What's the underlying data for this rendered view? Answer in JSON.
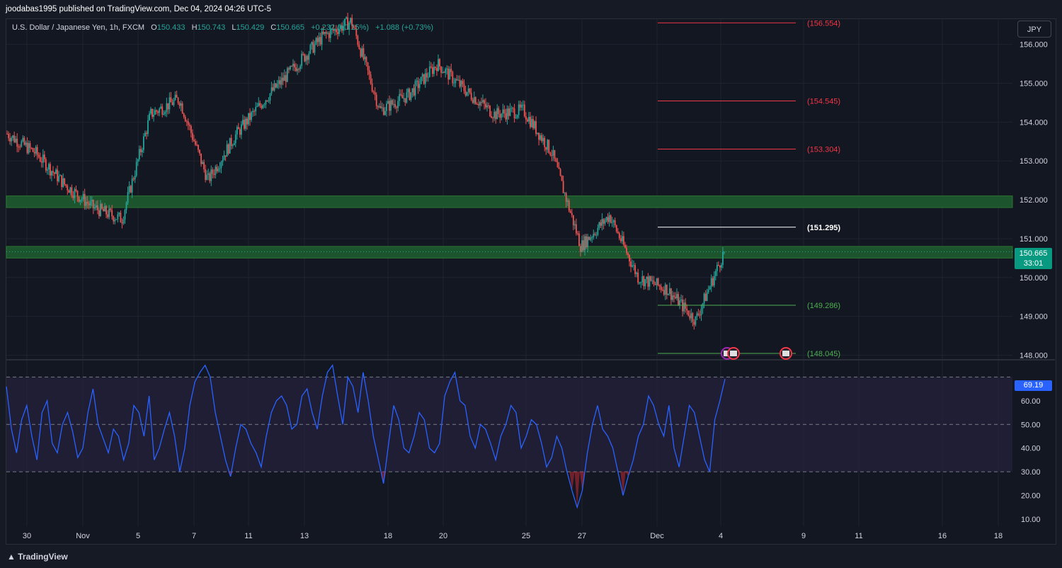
{
  "header": {
    "published": "joodabas1995 published on TradingView.com, Dec 04, 2024 04:26 UTC-5"
  },
  "legend": {
    "symbol": "U.S. Dollar / Japanese Yen, 1h, FXCM",
    "o_label": "O",
    "o": "150.433",
    "h_label": "H",
    "h": "150.743",
    "l_label": "L",
    "l": "150.429",
    "c_label": "C",
    "c": "150.665",
    "change": "+0.232 (+0.15%)",
    "change2": "+1.088 (+0.73%)"
  },
  "currency_button": "JPY",
  "price_tag": {
    "price": "150.665",
    "countdown": "33:01"
  },
  "rsi_tag": "69.19",
  "footer": {
    "brand": "TradingView"
  },
  "colors": {
    "background": "#131722",
    "up": "#26a69a",
    "down": "#ef5350",
    "zone": "#1e5b2f",
    "rsi_line": "#2962ff",
    "rsi_band": "#2a2545",
    "resistance": "#f23645",
    "support": "#4caf50"
  },
  "chart_data": [
    {
      "type": "candlestick",
      "title": "U.S. Dollar / Japanese Yen, 1h, FXCM",
      "ylim": [
        147.9,
        156.65
      ],
      "yticks": [
        "156.000",
        "155.000",
        "154.000",
        "153.000",
        "152.000",
        "151.000",
        "150.000",
        "149.000",
        "148.000"
      ],
      "xticks": [
        "30",
        "Nov",
        "5",
        "7",
        "11",
        "13",
        "18",
        "20",
        "25",
        "27",
        "Dec",
        "4",
        "9",
        "11",
        "16",
        "18"
      ],
      "path_points_approx": [
        {
          "x": "Oct 30",
          "y": 153.7
        },
        {
          "x": "Oct 31",
          "y": 153.2
        },
        {
          "x": "Nov 1",
          "y": 152.4
        },
        {
          "x": "Nov 4",
          "y": 151.8
        },
        {
          "x": "Nov 5",
          "y": 151.5
        },
        {
          "x": "Nov 6",
          "y": 154.2
        },
        {
          "x": "Nov 7",
          "y": 154.6
        },
        {
          "x": "Nov 8",
          "y": 152.5
        },
        {
          "x": "Nov 11",
          "y": 153.7
        },
        {
          "x": "Nov 12",
          "y": 154.6
        },
        {
          "x": "Nov 13",
          "y": 155.4
        },
        {
          "x": "Nov 14",
          "y": 156.2
        },
        {
          "x": "Nov 15",
          "y": 156.6
        },
        {
          "x": "Nov 18",
          "y": 154.3
        },
        {
          "x": "Nov 19",
          "y": 154.7
        },
        {
          "x": "Nov 20",
          "y": 155.5
        },
        {
          "x": "Nov 21",
          "y": 154.8
        },
        {
          "x": "Nov 22",
          "y": 154.2
        },
        {
          "x": "Nov 25",
          "y": 154.3
        },
        {
          "x": "Nov 26",
          "y": 153.2
        },
        {
          "x": "Nov 27",
          "y": 150.8
        },
        {
          "x": "Nov 28",
          "y": 151.6
        },
        {
          "x": "Nov 29",
          "y": 150.0
        },
        {
          "x": "Dec 2",
          "y": 149.7
        },
        {
          "x": "Dec 3",
          "y": 148.9
        },
        {
          "x": "Dec 4",
          "y": 150.665
        }
      ],
      "zones": [
        {
          "from": 151.8,
          "to": 152.1
        },
        {
          "from": 150.5,
          "to": 150.8
        }
      ],
      "levels": [
        {
          "value": 156.554,
          "label": "(156.554)",
          "kind": "resistance"
        },
        {
          "value": 154.545,
          "label": "(154.545)",
          "kind": "resistance"
        },
        {
          "value": 153.304,
          "label": "(153.304)",
          "kind": "resistance"
        },
        {
          "value": 151.295,
          "label": "(151.295)",
          "kind": "pivot"
        },
        {
          "value": 149.286,
          "label": "(149.286)",
          "kind": "support"
        },
        {
          "value": 148.045,
          "label": "(148.045)",
          "kind": "support"
        }
      ],
      "last_price": 150.665
    },
    {
      "type": "line",
      "ylim": [
        7,
        77
      ],
      "yticks": [
        "60.00",
        "50.00",
        "40.00",
        "30.00",
        "20.00",
        "10.00"
      ],
      "bands": {
        "upper": 70,
        "middle": 50,
        "lower": 30
      },
      "series": [
        {
          "values": [
            66,
            48,
            38,
            52,
            58,
            45,
            35,
            55,
            60,
            42,
            38,
            50,
            55,
            47,
            36,
            40,
            55,
            65,
            50,
            44,
            38,
            48,
            45,
            35,
            42,
            58,
            55,
            45,
            62,
            35,
            40,
            48,
            55,
            45,
            30,
            40,
            58,
            68,
            72,
            75,
            70,
            55,
            45,
            35,
            28,
            40,
            50,
            48,
            42,
            38,
            32,
            45,
            55,
            60,
            62,
            58,
            48,
            50,
            62,
            65,
            55,
            48,
            62,
            72,
            75,
            62,
            50,
            70,
            66,
            55,
            72,
            60,
            45,
            35,
            25,
            42,
            58,
            52,
            40,
            38,
            45,
            55,
            52,
            40,
            38,
            42,
            62,
            68,
            72,
            60,
            58,
            45,
            40,
            50,
            48,
            42,
            35,
            45,
            50,
            58,
            55,
            40,
            45,
            52,
            50,
            42,
            32,
            36,
            45,
            40,
            30,
            22,
            15,
            22,
            38,
            50,
            58,
            48,
            45,
            40,
            30,
            20,
            28,
            35,
            45,
            50,
            62,
            58,
            50,
            45,
            58,
            40,
            32,
            45,
            58,
            55,
            45,
            35,
            30,
            52,
            60,
            69.19
          ]
        }
      ],
      "last_value": 69.19
    }
  ]
}
